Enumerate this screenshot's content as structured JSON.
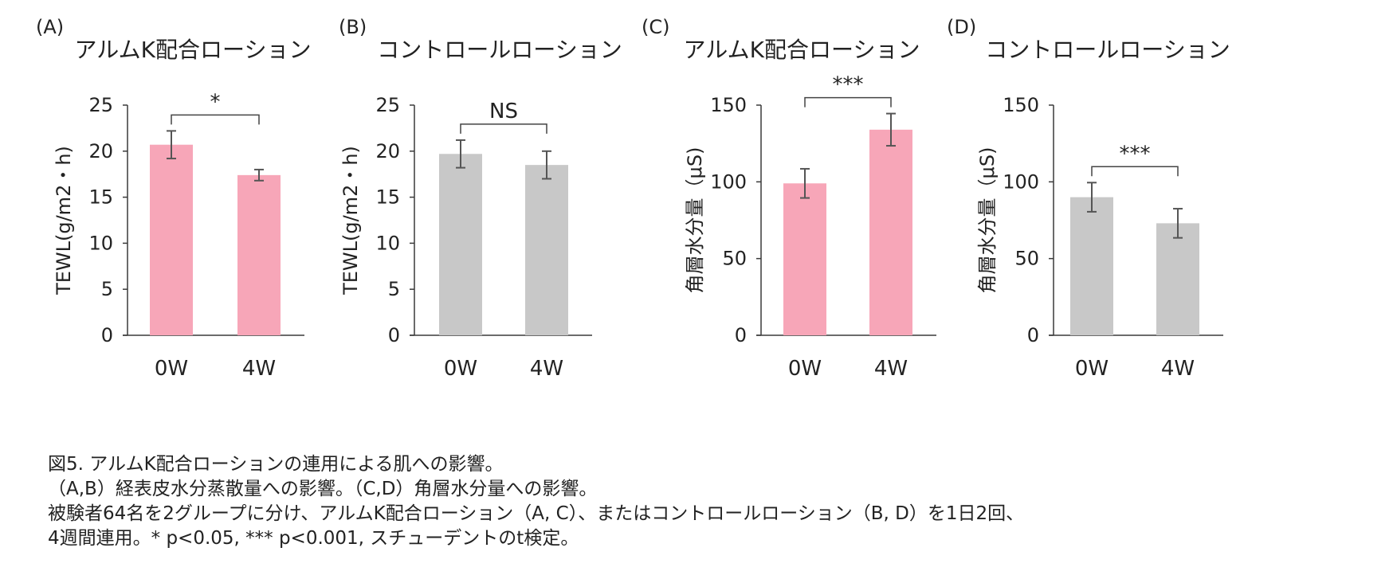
{
  "chart_data": [
    {
      "type": "bar",
      "panel": "(A)",
      "title": "アルムK配合ローション",
      "ylabel": "TEWL(g/m2・h)",
      "categories": [
        "0W",
        "4W"
      ],
      "values": [
        20.7,
        17.4
      ],
      "errors": [
        1.5,
        0.6
      ],
      "ylim": [
        0,
        25
      ],
      "yticks": [
        0,
        5,
        10,
        15,
        20,
        25
      ],
      "color": "#f7a6b8",
      "significance": "*"
    },
    {
      "type": "bar",
      "panel": "(B)",
      "title": "コントロールローション",
      "ylabel": "TEWL(g/m2・h)",
      "categories": [
        "0W",
        "4W"
      ],
      "values": [
        19.7,
        18.5
      ],
      "errors": [
        1.5,
        1.5
      ],
      "ylim": [
        0,
        25
      ],
      "yticks": [
        0,
        5,
        10,
        15,
        20,
        25
      ],
      "color": "#c8c8c8",
      "significance": "NS"
    },
    {
      "type": "bar",
      "panel": "(C)",
      "title": "アルムK配合ローション",
      "ylabel": "角層水分量（μS)",
      "categories": [
        "0W",
        "4W"
      ],
      "values": [
        99,
        134
      ],
      "errors": [
        9.5,
        10.5
      ],
      "ylim": [
        0,
        150
      ],
      "yticks": [
        0,
        50,
        100,
        150
      ],
      "color": "#f7a6b8",
      "significance": "***"
    },
    {
      "type": "bar",
      "panel": "(D)",
      "title": "コントロールローション",
      "ylabel": "角層水分量（μS)",
      "categories": [
        "0W",
        "4W"
      ],
      "values": [
        90,
        73
      ],
      "errors": [
        9.5,
        9.5
      ],
      "ylim": [
        0,
        150
      ],
      "yticks": [
        0,
        50,
        100,
        150
      ],
      "color": "#c8c8c8",
      "significance": "***"
    }
  ],
  "caption": {
    "line1": "図5. アルムK配合ローションの連用による肌への影響。",
    "line2": "（A,B）経表皮水分蒸散量への影響。（C,D）角層水分量への影響。",
    "line3": "被験者64名を2グループに分け、アルムK配合ローション（A, C）、またはコントロールローション（B, D）を1日2回、",
    "line4": "4週間連用。* p<0.05, *** p<0.001, スチューデントのt検定。"
  }
}
